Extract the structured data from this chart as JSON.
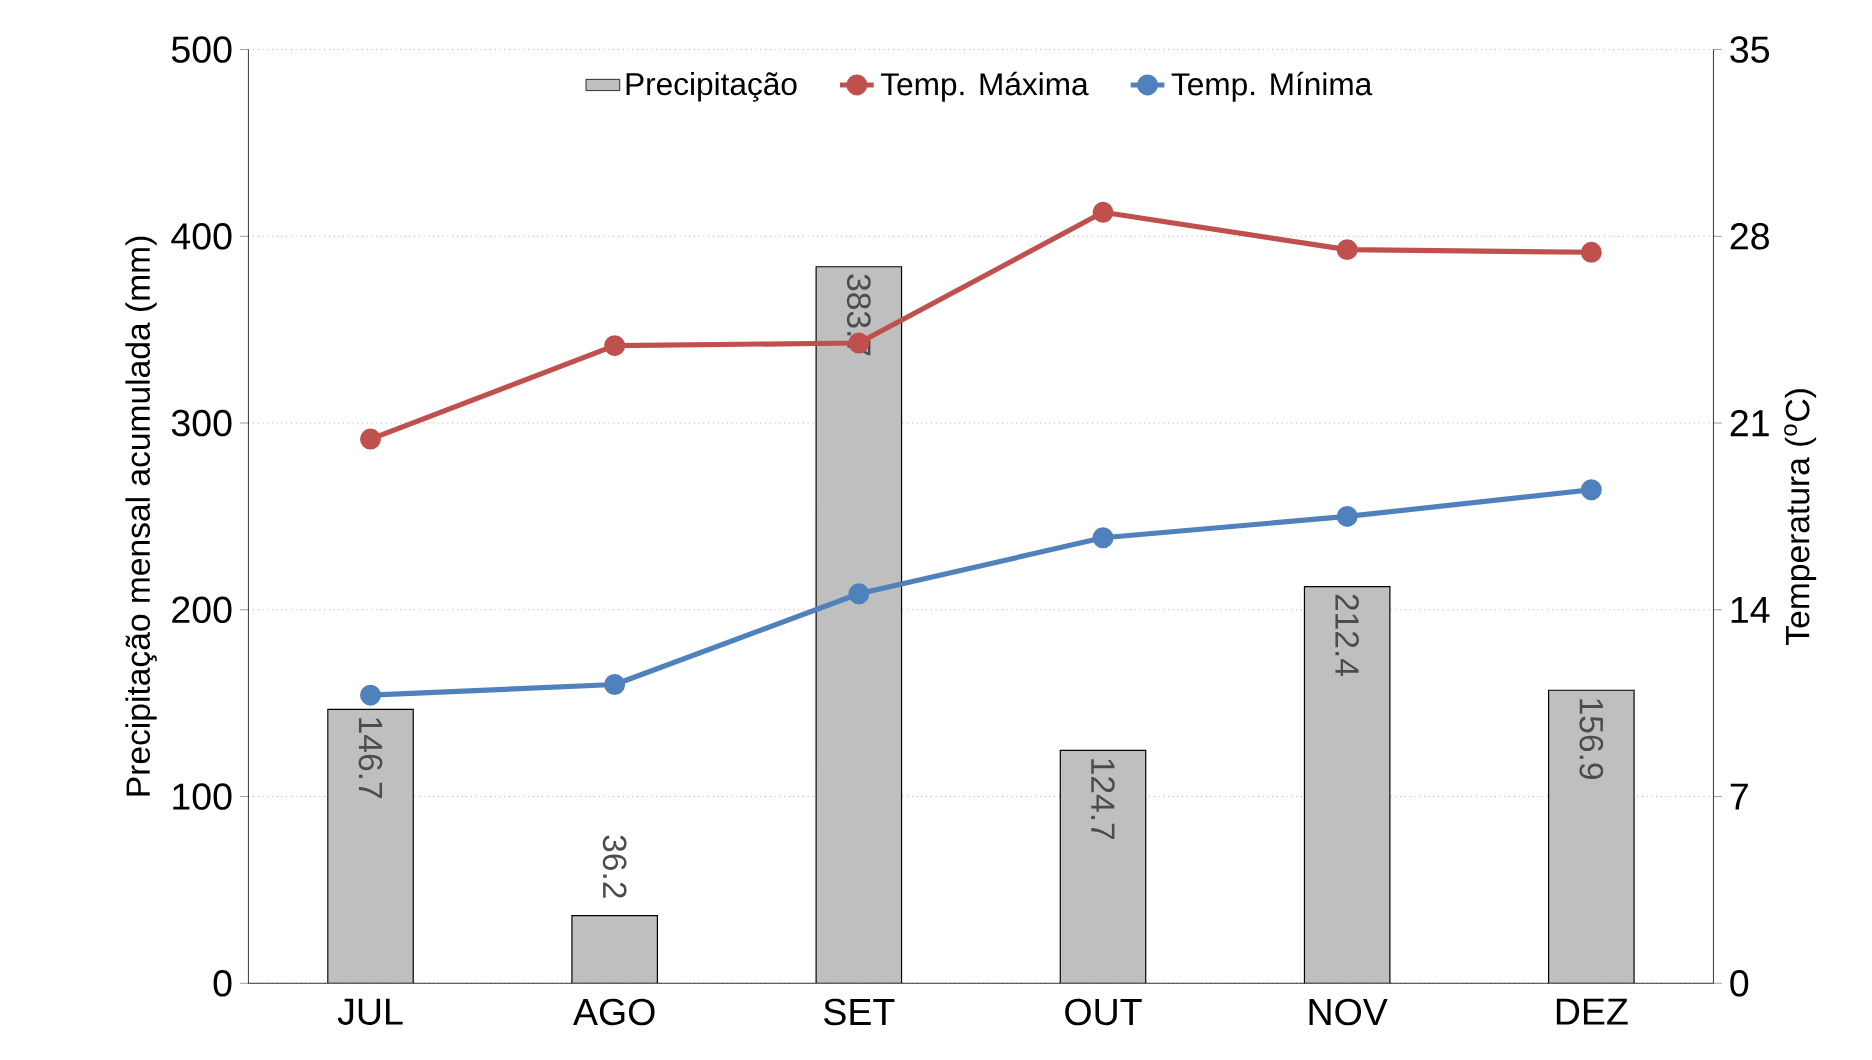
{
  "chart_data": {
    "type": "bar",
    "categories": [
      "JUL",
      "AGO",
      "SET",
      "OUT",
      "NOV",
      "DEZ"
    ],
    "ylabel": "Precipitação mensal acumulada (mm)",
    "y2label": "Temperatura ($^{o}$C)",
    "ylim": [
      0,
      500
    ],
    "yticks": [
      0,
      100,
      200,
      300,
      400,
      500
    ],
    "y2lim": [
      0,
      35
    ],
    "y2ticks": [
      0,
      7,
      14,
      21,
      28,
      35
    ],
    "grid": "y",
    "legend": "top",
    "marker": "circle",
    "series": [
      {
        "name": "Precipitação",
        "color": "#bfbfbf",
        "values": [
          146.7,
          36.2,
          383.7,
          124.7,
          212.4,
          156.9
        ],
        "value_labels": [
          "146.7",
          "36.2",
          "383.7",
          "124.7",
          "212.4",
          "156.9"
        ]
      },
      {
        "name": "Temp. Máxima",
        "type": "line",
        "axis": "y2",
        "color": "#c0504d",
        "values": [
          20.4,
          23.9,
          24.0,
          28.9,
          27.5,
          27.4
        ]
      },
      {
        "name": "Temp. Mínima",
        "type": "line",
        "axis": "y2",
        "color": "#4f81bd",
        "values": [
          10.8,
          11.2,
          14.6,
          16.7,
          17.5,
          18.5
        ]
      }
    ]
  }
}
